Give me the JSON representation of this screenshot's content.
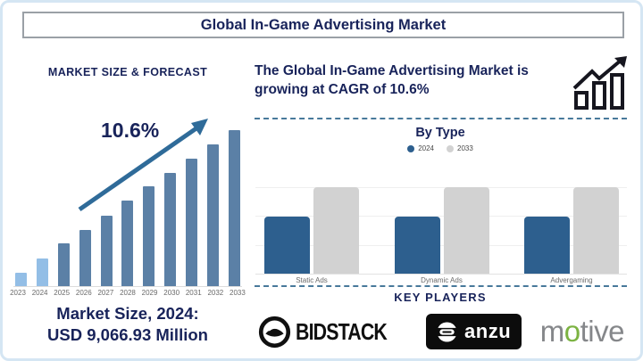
{
  "page_title": "Global In-Game Advertising Market",
  "left_panel": {
    "heading": "MARKET SIZE & FORECAST",
    "cagr_label": "10.6%",
    "caption_line1": "Market Size, 2024:",
    "caption_line2": "USD 9,066.93 Million"
  },
  "right_panel": {
    "headline": "The Global In-Game Advertising Market is growing at CAGR of 10.6%",
    "by_type_title": "By Type",
    "key_players_heading": "KEY PLAYERS",
    "players": {
      "bidstack_label": "BIDSTACK",
      "anzu_label": "anzu",
      "motive_parts": {
        "pre": "m",
        "accent": "o",
        "post": "tive"
      }
    }
  },
  "colors": {
    "navy_text": "#18235a",
    "bar_recent_light_blue": "#93bee6",
    "bar_forecast_steel_blue": "#5b80a6",
    "trend_arrow_blue": "#2f6b99",
    "bytype_2024_blue": "#2d5f8e",
    "bytype_2033_gray": "#d2d2d2",
    "dashed_line": "#48799b",
    "frame_border_light_blue": "#d5e6f3",
    "motive_green": "#7cb342"
  },
  "chart_data": [
    {
      "type": "bar",
      "title": "MARKET SIZE & FORECAST",
      "categories": [
        "2023",
        "2024",
        "2025",
        "2026",
        "2027",
        "2028",
        "2029",
        "2030",
        "2031",
        "2032",
        "2033"
      ],
      "values": [
        15,
        31,
        48,
        63,
        79,
        96,
        112,
        127,
        143,
        159,
        175
      ],
      "values_note": "relative bar heights in px; value axis unlabeled in source",
      "labeled_point": {
        "year": "2024",
        "value_text": "USD 9,066.93 Million"
      },
      "cagr_annotation": "10.6%",
      "bar_color_recent": "#93bee6",
      "bar_color_forecast": "#5b80a6",
      "recent_years_count": 2,
      "legend_position": "none",
      "grid": false
    },
    {
      "type": "bar",
      "title": "By Type",
      "categories": [
        "Static Ads",
        "Dynamic Ads",
        "Advergaming"
      ],
      "series": [
        {
          "name": "2024",
          "values": [
            64,
            64,
            64
          ],
          "color": "#2d5f8e"
        },
        {
          "name": "2033",
          "values": [
            97,
            97,
            97
          ],
          "color": "#d2d2d2"
        }
      ],
      "values_note": "relative bar heights in px; value axis unlabeled in source",
      "legend_position": "top",
      "grid": true
    }
  ]
}
